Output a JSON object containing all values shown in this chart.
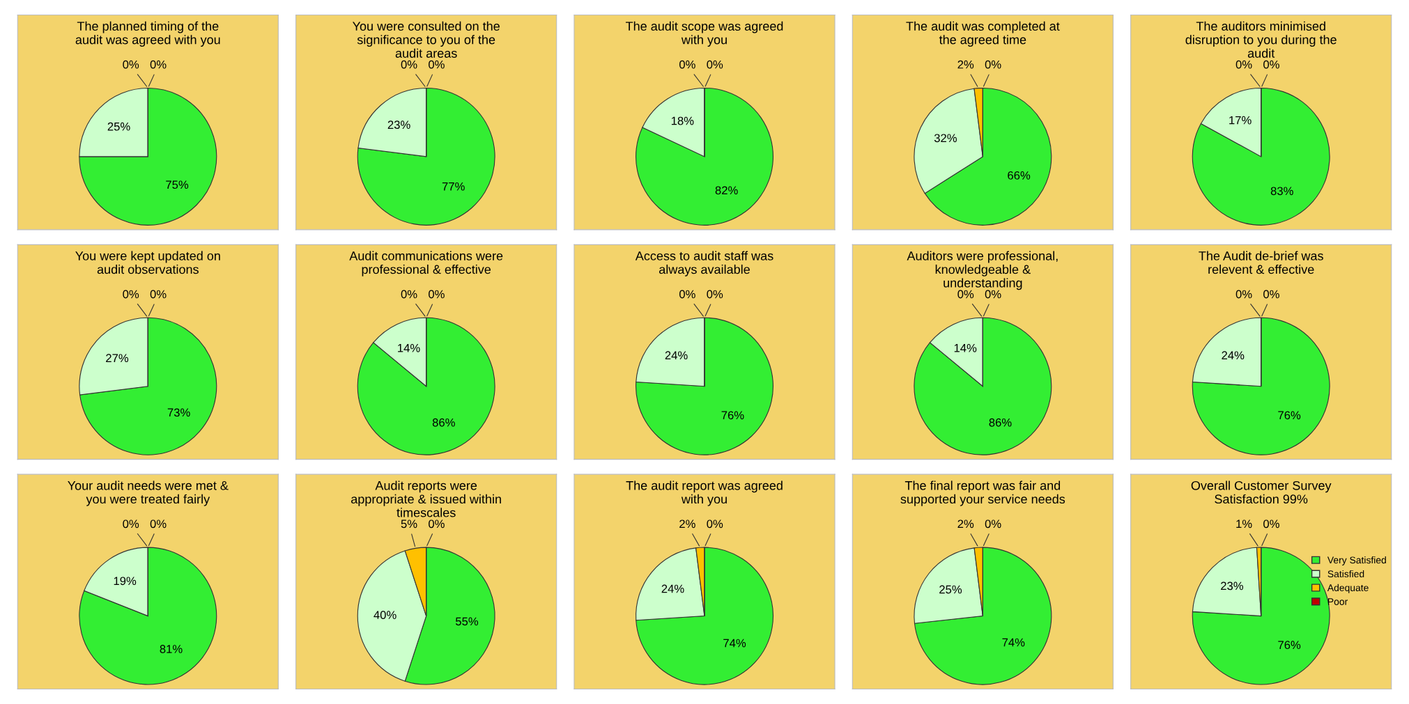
{
  "chart_data": [
    {
      "type": "pie",
      "title": "The planned timing of the\naudit was agreed with you",
      "categories": [
        null,
        null,
        null,
        null
      ],
      "values": [
        75,
        25,
        0,
        0
      ],
      "value_labels": [
        "75%",
        "25%",
        "0%",
        "0%"
      ],
      "colors": [
        "#33ee33",
        "#ccffcc",
        "#ffc000",
        "#c00000"
      ],
      "legend": false
    },
    {
      "type": "pie",
      "title": "You were consulted on the\nsignificance to you of the\naudit areas",
      "categories": [
        null,
        null,
        null,
        null
      ],
      "values": [
        77,
        23,
        0,
        0
      ],
      "value_labels": [
        "77%",
        "23%",
        "0%",
        "0%"
      ],
      "colors": [
        "#33ee33",
        "#ccffcc",
        "#ffc000",
        "#c00000"
      ],
      "legend": false
    },
    {
      "type": "pie",
      "title": "The audit scope was agreed\nwith you",
      "categories": [
        null,
        null,
        null,
        null
      ],
      "values": [
        82,
        18,
        0,
        0
      ],
      "value_labels": [
        "82%",
        "18%",
        "0%",
        "0%"
      ],
      "colors": [
        "#33ee33",
        "#ccffcc",
        "#ffc000",
        "#c00000"
      ],
      "legend": false
    },
    {
      "type": "pie",
      "title": "The audit was completed at\nthe agreed time",
      "categories": [
        null,
        null,
        null,
        null
      ],
      "values": [
        66,
        32,
        2,
        0
      ],
      "value_labels": [
        "66%",
        "32%",
        "2%",
        "0%"
      ],
      "colors": [
        "#33ee33",
        "#ccffcc",
        "#ffc000",
        "#c00000"
      ],
      "legend": false
    },
    {
      "type": "pie",
      "title": "The auditors minimised\ndisruption to you during the\naudit",
      "categories": [
        null,
        null,
        null,
        null
      ],
      "values": [
        83,
        17,
        0,
        0
      ],
      "value_labels": [
        "83%",
        "17%",
        "0%",
        "0%"
      ],
      "colors": [
        "#33ee33",
        "#ccffcc",
        "#ffc000",
        "#c00000"
      ],
      "legend": false
    },
    {
      "type": "pie",
      "title": "You were kept updated on\naudit observations",
      "categories": [
        null,
        null,
        null,
        null
      ],
      "values": [
        73,
        27,
        0,
        0
      ],
      "value_labels": [
        "73%",
        "27%",
        "0%",
        "0%"
      ],
      "colors": [
        "#33ee33",
        "#ccffcc",
        "#ffc000",
        "#c00000"
      ],
      "legend": false
    },
    {
      "type": "pie",
      "title": "Audit communications were\nprofessional & effective",
      "categories": [
        null,
        null,
        null,
        null
      ],
      "values": [
        86,
        14,
        0,
        0
      ],
      "value_labels": [
        "86%",
        "14%",
        "0%",
        "0%"
      ],
      "colors": [
        "#33ee33",
        "#ccffcc",
        "#ffc000",
        "#c00000"
      ],
      "legend": false
    },
    {
      "type": "pie",
      "title": "Access to audit staff was\nalways available",
      "categories": [
        null,
        null,
        null,
        null
      ],
      "values": [
        76,
        24,
        0,
        0
      ],
      "value_labels": [
        "76%",
        "24%",
        "0%",
        "0%"
      ],
      "colors": [
        "#33ee33",
        "#ccffcc",
        "#ffc000",
        "#c00000"
      ],
      "legend": false
    },
    {
      "type": "pie",
      "title": "Auditors were professional,\nknowledgeable &\nunderstanding",
      "categories": [
        null,
        null,
        null,
        null
      ],
      "values": [
        86,
        14,
        0,
        0
      ],
      "value_labels": [
        "86%",
        "14%",
        "0%",
        "0%"
      ],
      "colors": [
        "#33ee33",
        "#ccffcc",
        "#ffc000",
        "#c00000"
      ],
      "legend": false
    },
    {
      "type": "pie",
      "title": "The Audit de-brief was\nrelevent & effective",
      "categories": [
        null,
        null,
        null,
        null
      ],
      "values": [
        76,
        24,
        0,
        0
      ],
      "value_labels": [
        "76%",
        "24%",
        "0%",
        "0%"
      ],
      "colors": [
        "#33ee33",
        "#ccffcc",
        "#ffc000",
        "#c00000"
      ],
      "legend": false
    },
    {
      "type": "pie",
      "title": "Your audit needs were met &\nyou were treated fairly",
      "categories": [
        null,
        null,
        null,
        null
      ],
      "values": [
        81,
        19,
        0,
        0
      ],
      "value_labels": [
        "81%",
        "19%",
        "0%",
        "0%"
      ],
      "colors": [
        "#33ee33",
        "#ccffcc",
        "#ffc000",
        "#c00000"
      ],
      "legend": false
    },
    {
      "type": "pie",
      "title": "Audit reports were\nappropriate & issued within\ntimescales",
      "categories": [
        null,
        null,
        null,
        null
      ],
      "values": [
        55,
        40,
        5,
        0
      ],
      "value_labels": [
        "55%",
        "40%",
        "5%",
        "0%"
      ],
      "colors": [
        "#33ee33",
        "#ccffcc",
        "#ffc000",
        "#c00000"
      ],
      "legend": false
    },
    {
      "type": "pie",
      "title": "The audit report was agreed\nwith you",
      "categories": [
        null,
        null,
        null,
        null
      ],
      "values": [
        74,
        24,
        2,
        0
      ],
      "value_labels": [
        "74%",
        "24%",
        "2%",
        "0%"
      ],
      "colors": [
        "#33ee33",
        "#ccffcc",
        "#ffc000",
        "#c00000"
      ],
      "legend": false
    },
    {
      "type": "pie",
      "title": "The final report was fair and\nsupported your service needs",
      "categories": [
        null,
        null,
        null,
        null
      ],
      "values": [
        74,
        25,
        2,
        0
      ],
      "value_labels": [
        "74%",
        "25%",
        "2%",
        "0%"
      ],
      "colors": [
        "#33ee33",
        "#ccffcc",
        "#ffc000",
        "#c00000"
      ],
      "legend": false
    },
    {
      "type": "pie",
      "title": "Overall Customer Survey\nSatisfaction 99%",
      "categories": [
        "Very Satisfied",
        "Satisfied",
        "Adequate",
        "Poor"
      ],
      "values": [
        76,
        23,
        1,
        0
      ],
      "value_labels": [
        "76%",
        "23%",
        "1%",
        "0%"
      ],
      "colors": [
        "#33ee33",
        "#ccffcc",
        "#ffc000",
        "#c00000"
      ],
      "legend": "right"
    }
  ]
}
